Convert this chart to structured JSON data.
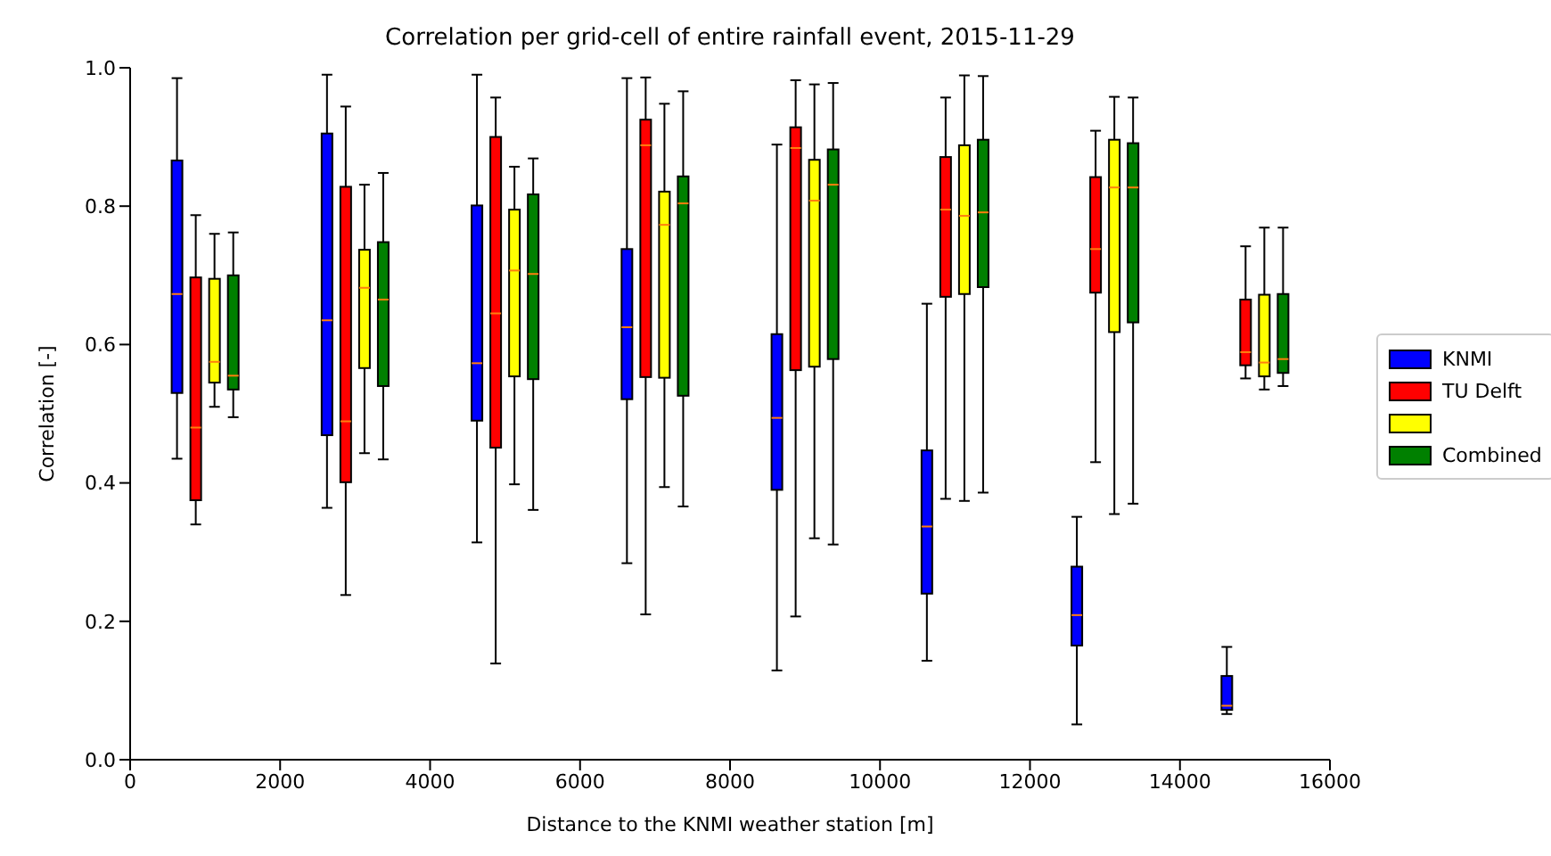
{
  "chart_data": {
    "type": "box",
    "title": "Correlation per grid-cell of entire rainfall event, 2015-11-29",
    "xlabel": "Distance to the KNMI weather station [m]",
    "ylabel": "Correlation [-]",
    "x": [
      1000,
      3000,
      5000,
      7000,
      9000,
      11000,
      13000,
      15000
    ],
    "xlim": [
      0,
      16000
    ],
    "xticks": [
      0,
      2000,
      4000,
      6000,
      8000,
      10000,
      12000,
      14000,
      16000
    ],
    "ylim": [
      0,
      1
    ],
    "yticks": [
      {
        "value": 0,
        "label": "0.0"
      },
      0.2,
      0.4,
      0.6,
      0.8,
      {
        "value": 1,
        "label": "1.0"
      }
    ],
    "legend": "right",
    "series": [
      {
        "name": "KNMI",
        "color": "#0000ff",
        "boxes": [
          {
            "low": 0.435,
            "q1": 0.53,
            "median": 0.673,
            "q3": 0.866,
            "high": 0.985
          },
          {
            "low": 0.364,
            "q1": 0.469,
            "median": 0.635,
            "q3": 0.905,
            "high": 0.99
          },
          {
            "low": 0.314,
            "q1": 0.49,
            "median": 0.573,
            "q3": 0.801,
            "high": 0.99
          },
          {
            "low": 0.284,
            "q1": 0.521,
            "median": 0.625,
            "q3": 0.738,
            "high": 0.985
          },
          {
            "low": 0.129,
            "q1": 0.39,
            "median": 0.494,
            "q3": 0.615,
            "high": 0.889
          },
          {
            "low": 0.143,
            "q1": 0.24,
            "median": 0.337,
            "q3": 0.447,
            "high": 0.659
          },
          {
            "low": 0.051,
            "q1": 0.165,
            "median": 0.209,
            "q3": 0.279,
            "high": 0.351
          },
          {
            "low": 0.066,
            "q1": 0.072,
            "median": 0.078,
            "q3": 0.121,
            "high": 0.163
          }
        ]
      },
      {
        "name": "TU Delft",
        "color": "#ff0000",
        "boxes": [
          {
            "low": 0.34,
            "q1": 0.375,
            "median": 0.48,
            "q3": 0.697,
            "high": 0.787
          },
          {
            "low": 0.238,
            "q1": 0.401,
            "median": 0.489,
            "q3": 0.828,
            "high": 0.944
          },
          {
            "low": 0.139,
            "q1": 0.451,
            "median": 0.645,
            "q3": 0.9,
            "high": 0.957
          },
          {
            "low": 0.21,
            "q1": 0.553,
            "median": 0.888,
            "q3": 0.925,
            "high": 0.986
          },
          {
            "low": 0.207,
            "q1": 0.563,
            "median": 0.884,
            "q3": 0.914,
            "high": 0.982
          },
          {
            "low": 0.377,
            "q1": 0.669,
            "median": 0.795,
            "q3": 0.871,
            "high": 0.957
          },
          {
            "low": 0.43,
            "q1": 0.675,
            "median": 0.738,
            "q3": 0.842,
            "high": 0.909
          },
          {
            "low": 0.551,
            "q1": 0.57,
            "median": 0.589,
            "q3": 0.665,
            "high": 0.742
          }
        ]
      },
      {
        "color": "#ffff00",
        "boxes": [
          {
            "low": 0.51,
            "q1": 0.545,
            "median": 0.575,
            "q3": 0.695,
            "high": 0.76
          },
          {
            "low": 0.443,
            "q1": 0.566,
            "median": 0.682,
            "q3": 0.737,
            "high": 0.831
          },
          {
            "low": 0.398,
            "q1": 0.554,
            "median": 0.707,
            "q3": 0.795,
            "high": 0.857
          },
          {
            "low": 0.394,
            "q1": 0.552,
            "median": 0.773,
            "q3": 0.821,
            "high": 0.948
          },
          {
            "low": 0.32,
            "q1": 0.568,
            "median": 0.808,
            "q3": 0.867,
            "high": 0.976
          },
          {
            "low": 0.374,
            "q1": 0.673,
            "median": 0.786,
            "q3": 0.888,
            "high": 0.989
          },
          {
            "low": 0.355,
            "q1": 0.618,
            "median": 0.827,
            "q3": 0.896,
            "high": 0.958
          },
          {
            "low": 0.535,
            "q1": 0.554,
            "median": 0.574,
            "q3": 0.672,
            "high": 0.769
          }
        ]
      },
      {
        "name": "Combined",
        "color": "#008000",
        "boxes": [
          {
            "low": 0.495,
            "q1": 0.535,
            "median": 0.555,
            "q3": 0.7,
            "high": 0.762
          },
          {
            "low": 0.434,
            "q1": 0.54,
            "median": 0.665,
            "q3": 0.748,
            "high": 0.848
          },
          {
            "low": 0.361,
            "q1": 0.55,
            "median": 0.702,
            "q3": 0.817,
            "high": 0.869
          },
          {
            "low": 0.366,
            "q1": 0.526,
            "median": 0.804,
            "q3": 0.843,
            "high": 0.966
          },
          {
            "low": 0.311,
            "q1": 0.579,
            "median": 0.831,
            "q3": 0.882,
            "high": 0.978
          },
          {
            "low": 0.386,
            "q1": 0.683,
            "median": 0.791,
            "q3": 0.896,
            "high": 0.988
          },
          {
            "low": 0.37,
            "q1": 0.632,
            "median": 0.827,
            "q3": 0.891,
            "high": 0.957
          },
          {
            "low": 0.54,
            "q1": 0.559,
            "median": 0.579,
            "q3": 0.673,
            "high": 0.769
          }
        ]
      }
    ]
  }
}
